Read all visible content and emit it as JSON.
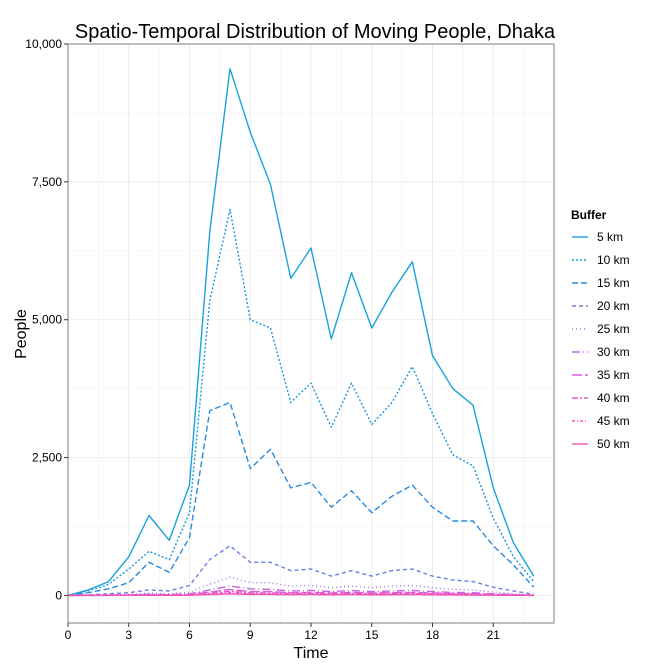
{
  "chart_data": {
    "type": "line",
    "title": "Spatio-Temporal Distribution of Moving People, Dhaka",
    "xlabel": "Time",
    "ylabel": "People",
    "xlim": [
      0,
      24
    ],
    "ylim": [
      -500,
      10000
    ],
    "x_ticks": [
      0,
      3,
      6,
      9,
      12,
      15,
      18,
      21
    ],
    "y_ticks": [
      0,
      2500,
      5000,
      7500,
      10000
    ],
    "y_tick_labels": [
      "0",
      "2,500",
      "5,000",
      "7,500",
      "10,000"
    ],
    "x_tick_labels": [
      "0",
      "3",
      "6",
      "9",
      "12",
      "15",
      "18",
      "21"
    ],
    "grid": true,
    "legend": {
      "title": "Buffer",
      "position": "right"
    },
    "x": [
      0,
      1,
      2,
      3,
      4,
      5,
      6,
      7,
      8,
      9,
      10,
      11,
      12,
      13,
      14,
      15,
      16,
      17,
      18,
      19,
      20,
      21,
      22,
      23
    ],
    "series": [
      {
        "name": "5 km",
        "color": "#1aa3d9",
        "dash": "solid",
        "values": [
          0,
          100,
          250,
          700,
          1450,
          1000,
          2000,
          6600,
          9550,
          8400,
          7450,
          5750,
          6300,
          4650,
          5850,
          4850,
          5500,
          6050,
          4350,
          3750,
          3450,
          1950,
          950,
          350
        ]
      },
      {
        "name": "10 km",
        "color": "#1c98dc",
        "dash": "2,2",
        "values": [
          0,
          80,
          200,
          480,
          800,
          650,
          1500,
          5350,
          7000,
          5000,
          4850,
          3500,
          3850,
          3050,
          3850,
          3100,
          3500,
          4150,
          3300,
          2550,
          2350,
          1400,
          700,
          250
        ]
      },
      {
        "name": "15 km",
        "color": "#2a8bde",
        "dash": "6,3",
        "values": [
          0,
          50,
          120,
          230,
          600,
          420,
          1050,
          3350,
          3500,
          2300,
          2650,
          1950,
          2050,
          1600,
          1900,
          1500,
          1800,
          2000,
          1600,
          1350,
          1350,
          900,
          550,
          150
        ]
      },
      {
        "name": "20 km",
        "color": "#6c7fe3",
        "dash": "4,3",
        "values": [
          0,
          10,
          30,
          50,
          100,
          80,
          180,
          650,
          900,
          600,
          600,
          450,
          480,
          350,
          450,
          350,
          450,
          480,
          350,
          280,
          250,
          150,
          80,
          20
        ]
      },
      {
        "name": "25 km",
        "color": "#a070e3",
        "dash": "1,3",
        "values": [
          0,
          5,
          10,
          20,
          40,
          30,
          60,
          200,
          330,
          230,
          230,
          170,
          180,
          140,
          170,
          140,
          170,
          180,
          140,
          110,
          100,
          60,
          30,
          10
        ]
      },
      {
        "name": "30 km",
        "color": "#c466e0",
        "dash": "8,3,1,3",
        "values": [
          0,
          3,
          6,
          10,
          20,
          15,
          30,
          100,
          170,
          120,
          110,
          80,
          90,
          70,
          90,
          70,
          80,
          90,
          70,
          55,
          50,
          30,
          15,
          5
        ]
      },
      {
        "name": "35 km",
        "color": "#dd5cd8",
        "dash": "10,3",
        "values": [
          0,
          2,
          4,
          7,
          12,
          10,
          20,
          60,
          110,
          70,
          70,
          50,
          55,
          45,
          55,
          45,
          50,
          55,
          45,
          35,
          30,
          20,
          10,
          3
        ]
      },
      {
        "name": "40 km",
        "color": "#ec55cc",
        "dash": "6,2,2,2",
        "values": [
          0,
          1,
          3,
          5,
          8,
          6,
          12,
          40,
          75,
          45,
          45,
          35,
          35,
          30,
          35,
          30,
          35,
          35,
          30,
          22,
          20,
          12,
          6,
          2
        ]
      },
      {
        "name": "45 km",
        "color": "#f350c2",
        "dash": "3,2,1,2",
        "values": [
          0,
          1,
          2,
          3,
          5,
          4,
          8,
          25,
          50,
          30,
          30,
          22,
          24,
          20,
          24,
          20,
          22,
          24,
          20,
          15,
          13,
          8,
          4,
          1
        ]
      },
      {
        "name": "50 km",
        "color": "#f551b4",
        "dash": "solid",
        "values": [
          0,
          0,
          1,
          2,
          3,
          2,
          5,
          15,
          30,
          18,
          18,
          14,
          15,
          12,
          15,
          12,
          14,
          15,
          12,
          9,
          8,
          5,
          2,
          1
        ]
      }
    ]
  }
}
